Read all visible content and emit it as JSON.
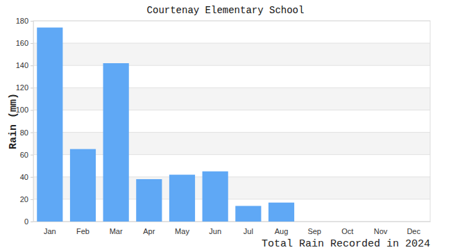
{
  "chart_data": {
    "type": "bar",
    "title": "Courtenay Elementary School",
    "y_label": "Rain (mm)",
    "x_label": "Total Rain Recorded in 2024",
    "categories": [
      "Jan",
      "Feb",
      "Mar",
      "Apr",
      "May",
      "Jun",
      "Jul",
      "Aug",
      "Sep",
      "Oct",
      "Nov",
      "Dec"
    ],
    "values": [
      174,
      65,
      142,
      38,
      42,
      45,
      14,
      17,
      0,
      0,
      0,
      0
    ],
    "color": "#5fa8f5",
    "ylim": [
      0,
      180
    ],
    "yticks": [
      0,
      20,
      40,
      60,
      80,
      100,
      120,
      140,
      160,
      180
    ],
    "grid": true
  }
}
